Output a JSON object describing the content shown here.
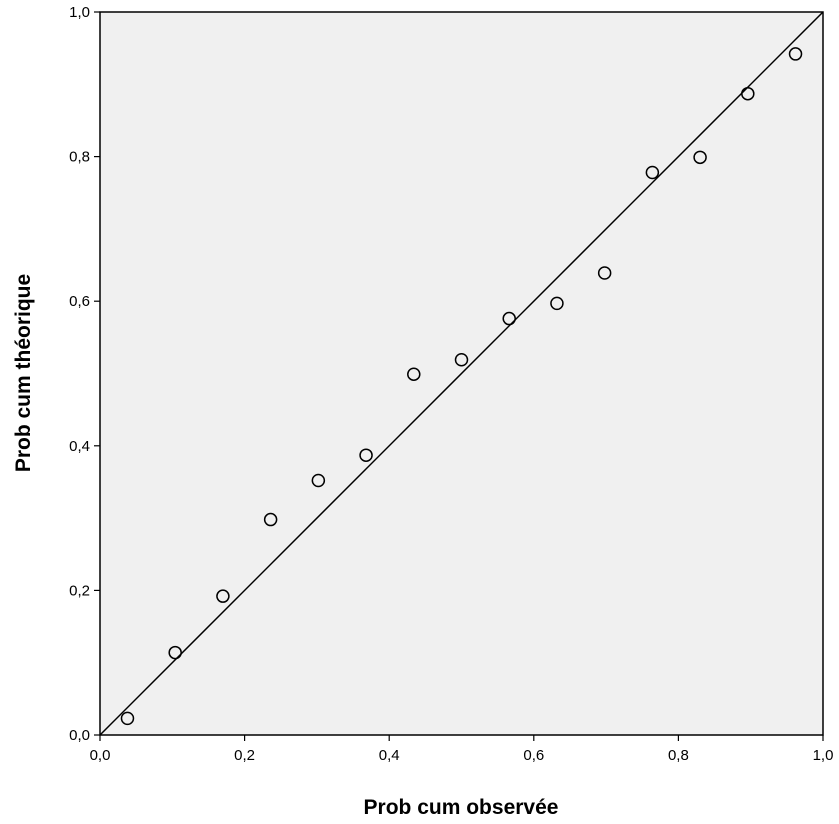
{
  "chart_data": {
    "type": "scatter",
    "title": "",
    "xlabel": "Prob cum observée",
    "ylabel": "Prob cum théorique",
    "xlim": [
      0,
      1
    ],
    "ylim": [
      0,
      1
    ],
    "grid": false,
    "x_ticks": [
      "0,0",
      "0,2",
      "0,4",
      "0,6",
      "0,8",
      "1,0"
    ],
    "y_ticks": [
      "0,0",
      "0,2",
      "0,4",
      "0,6",
      "0,8",
      "1,0"
    ],
    "points": [
      {
        "x": 0.038,
        "y": 0.023
      },
      {
        "x": 0.104,
        "y": 0.114
      },
      {
        "x": 0.17,
        "y": 0.192
      },
      {
        "x": 0.236,
        "y": 0.298
      },
      {
        "x": 0.302,
        "y": 0.352
      },
      {
        "x": 0.368,
        "y": 0.387
      },
      {
        "x": 0.434,
        "y": 0.499
      },
      {
        "x": 0.5,
        "y": 0.519
      },
      {
        "x": 0.566,
        "y": 0.576
      },
      {
        "x": 0.632,
        "y": 0.597
      },
      {
        "x": 0.698,
        "y": 0.639
      },
      {
        "x": 0.764,
        "y": 0.778
      },
      {
        "x": 0.83,
        "y": 0.799
      },
      {
        "x": 0.896,
        "y": 0.887
      },
      {
        "x": 0.962,
        "y": 0.942
      }
    ],
    "reference_line": {
      "x": [
        0,
        1
      ],
      "y": [
        0,
        1
      ]
    },
    "colors": {
      "plot_background": "#f0f0f0",
      "marker_stroke": "#000000",
      "line": "#000000"
    }
  }
}
